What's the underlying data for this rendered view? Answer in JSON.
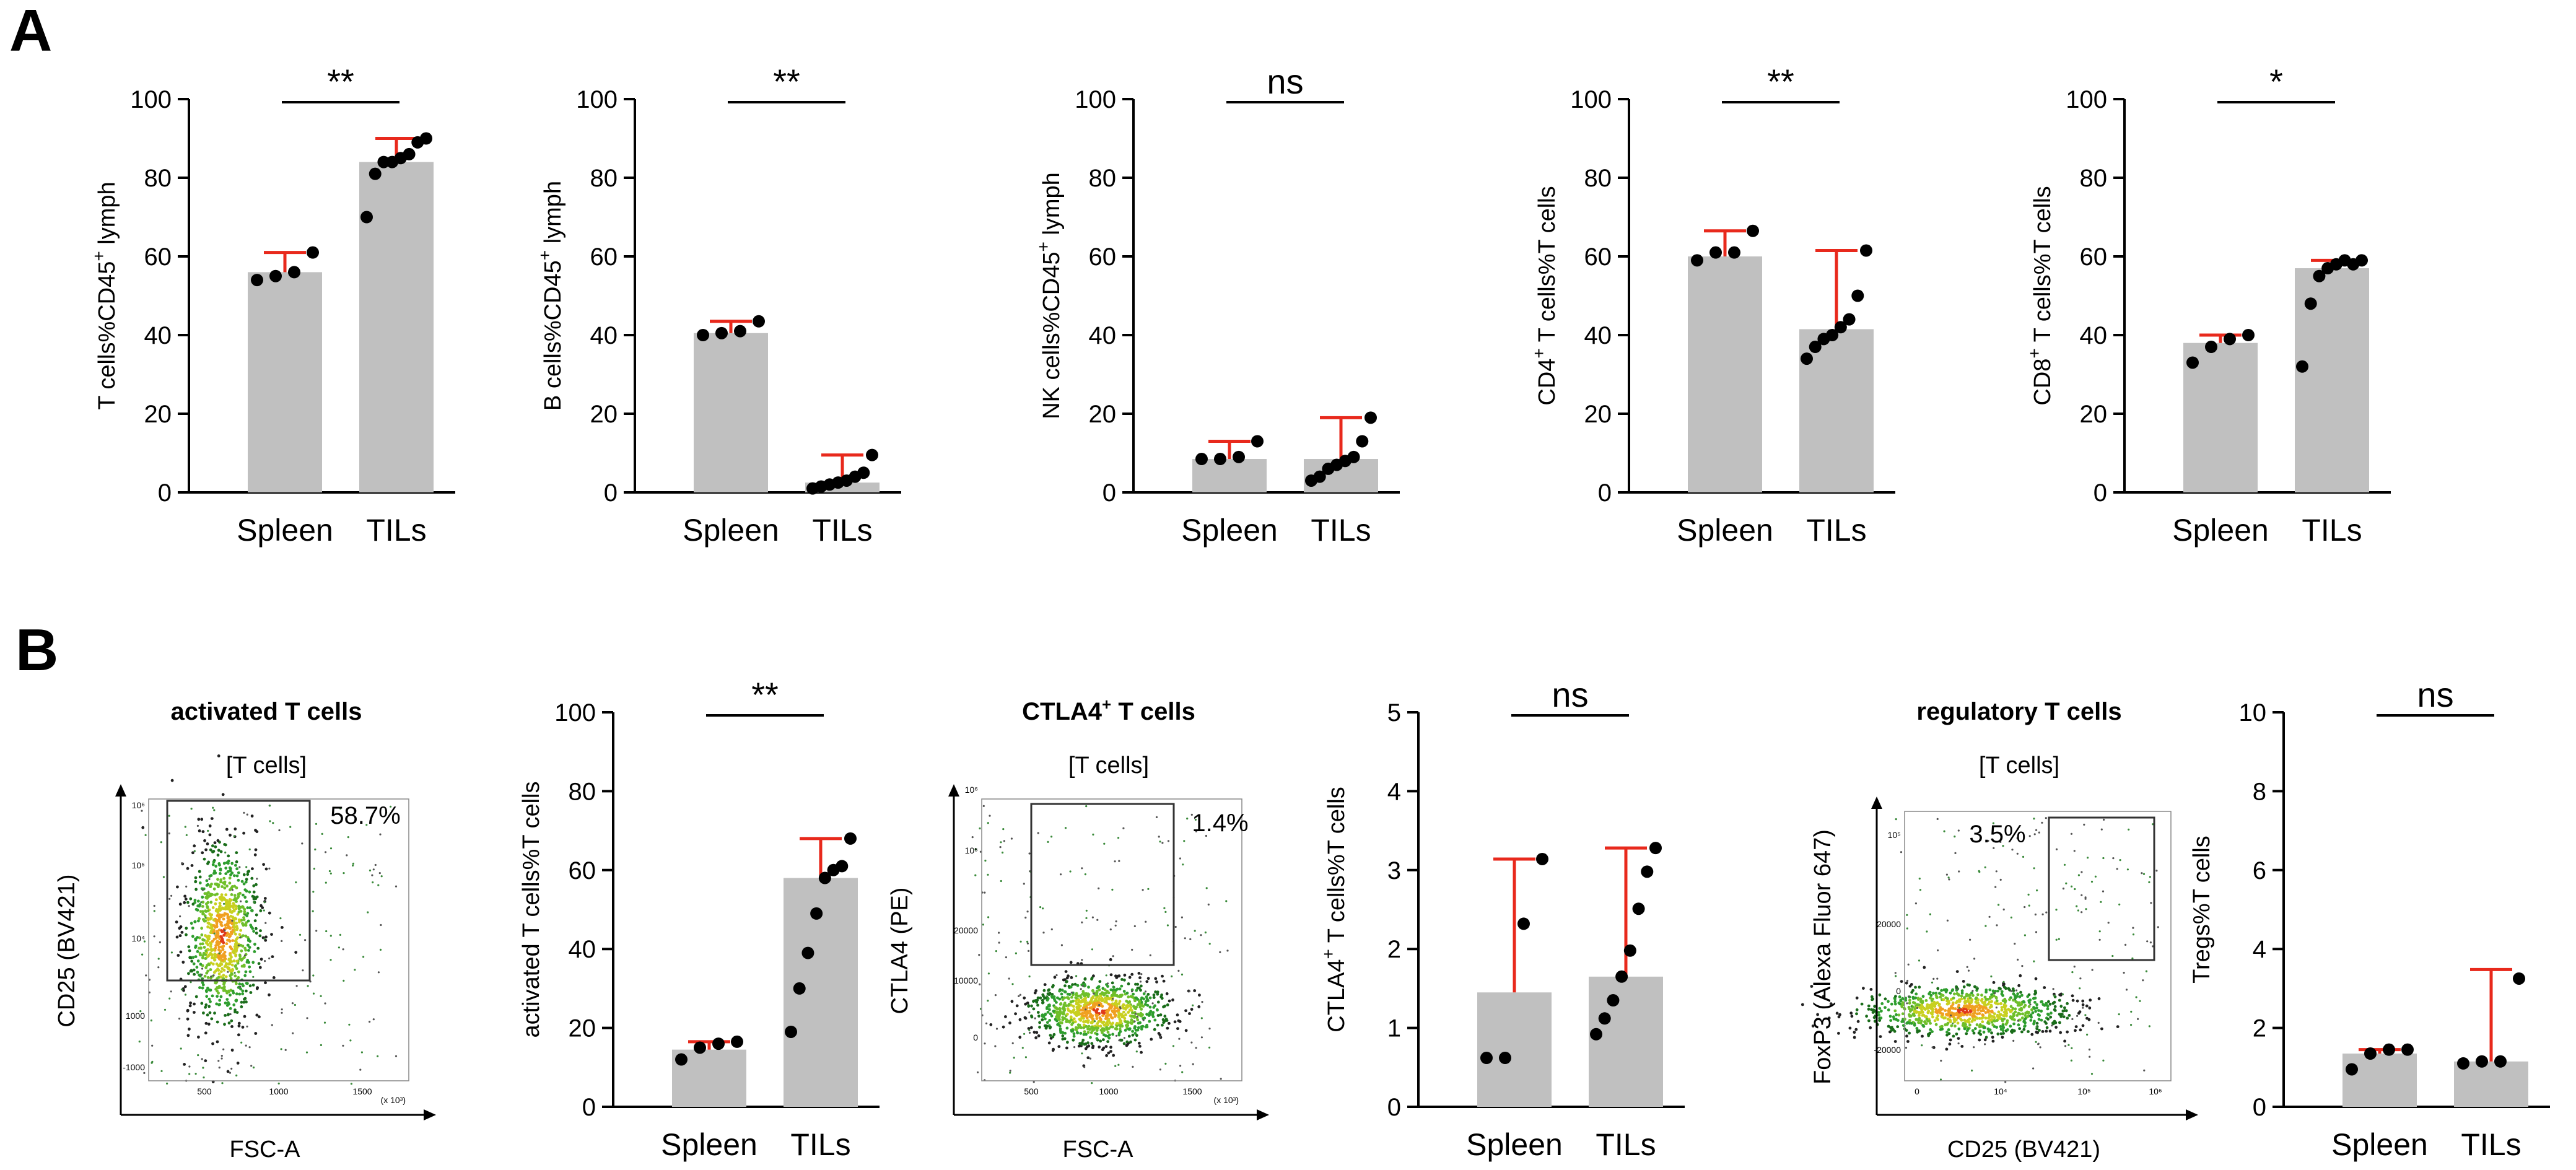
{
  "panel_labels": {
    "A": "A",
    "B": "B"
  },
  "colors": {
    "bar": "#c0c0c0",
    "errorbar": "#e8291c",
    "dot": "#000000",
    "axis": "#000000"
  },
  "chart_data": [
    {
      "id": "a1",
      "type": "bar",
      "categories": [
        "Spleen",
        "TILs"
      ],
      "values": [
        56,
        84
      ],
      "error_top": [
        61,
        90
      ],
      "points": [
        [
          54,
          55,
          56,
          61
        ],
        [
          70,
          81,
          84,
          84,
          85,
          86,
          89,
          90
        ]
      ],
      "ylabel": "T cells%CD45",
      "ylabel_sup": "+",
      "ylabel_tail": " lymph",
      "ylim": [
        0,
        100
      ],
      "yticks": [
        "0",
        "20",
        "40",
        "60",
        "80",
        "100"
      ],
      "sig": "**"
    },
    {
      "id": "a2",
      "type": "bar",
      "categories": [
        "Spleen",
        "TILs"
      ],
      "values": [
        40.5,
        2.5
      ],
      "error_top": [
        43.5,
        9.5
      ],
      "points": [
        [
          40,
          40.5,
          41,
          43.5
        ],
        [
          1,
          1.5,
          2,
          2.5,
          3,
          4,
          5,
          9.5
        ]
      ],
      "ylabel": "B cells%CD45",
      "ylabel_sup": "+",
      "ylabel_tail": " lymph",
      "ylim": [
        0,
        100
      ],
      "yticks": [
        "0",
        "20",
        "40",
        "60",
        "80",
        "100"
      ],
      "sig": "**"
    },
    {
      "id": "a3",
      "type": "bar",
      "categories": [
        "Spleen",
        "TILs"
      ],
      "values": [
        8.5,
        8.5
      ],
      "error_top": [
        13,
        19
      ],
      "points": [
        [
          8.5,
          8.5,
          9,
          13
        ],
        [
          3,
          4,
          6,
          7,
          8,
          9,
          13,
          19
        ]
      ],
      "ylabel": "NK cells%CD45",
      "ylabel_sup": "+",
      "ylabel_tail": " lymph",
      "ylim": [
        0,
        100
      ],
      "yticks": [
        "0",
        "20",
        "40",
        "60",
        "80",
        "100"
      ],
      "sig": "ns"
    },
    {
      "id": "a4",
      "type": "bar",
      "categories": [
        "Spleen",
        "TILs"
      ],
      "values": [
        60,
        41.5
      ],
      "error_top": [
        66.5,
        61.5
      ],
      "points": [
        [
          59,
          61,
          61,
          66.5
        ],
        [
          34,
          37,
          39,
          40,
          42,
          44,
          50,
          61.5
        ]
      ],
      "ylabel": "CD4",
      "ylabel_pre_sup": "+",
      "ylabel_tail": " T cells%T cells",
      "ylim": [
        0,
        100
      ],
      "yticks": [
        "0",
        "20",
        "40",
        "60",
        "80",
        "100"
      ],
      "sig": "**"
    },
    {
      "id": "a5",
      "type": "bar",
      "categories": [
        "Spleen",
        "TILs"
      ],
      "values": [
        38,
        57
      ],
      "error_top": [
        40,
        59
      ],
      "points": [
        [
          33,
          37,
          39,
          40
        ],
        [
          32,
          48,
          55,
          57,
          58,
          59,
          58,
          59
        ]
      ],
      "ylabel": "CD8",
      "ylabel_pre_sup": "+",
      "ylabel_tail": " T cells%T cells",
      "ylim": [
        0,
        100
      ],
      "yticks": [
        "0",
        "20",
        "40",
        "60",
        "80",
        "100"
      ],
      "sig": "*"
    },
    {
      "id": "b1",
      "type": "bar",
      "categories": [
        "Spleen",
        "TILs"
      ],
      "values": [
        14.5,
        58
      ],
      "error_top": [
        16.5,
        68
      ],
      "points": [
        [
          12,
          15,
          16,
          16.5
        ],
        [
          19,
          30,
          39,
          49,
          58,
          60,
          61,
          68
        ]
      ],
      "ylabel": "activated T cells%T cells",
      "ylim": [
        0,
        100
      ],
      "yticks": [
        "0",
        "20",
        "40",
        "60",
        "80",
        "100"
      ],
      "sig": "**"
    },
    {
      "id": "b2",
      "type": "bar",
      "categories": [
        "Spleen",
        "TILs"
      ],
      "values": [
        1.45,
        1.65
      ],
      "error_top": [
        3.14,
        3.28
      ],
      "points": [
        [
          0.62,
          0.62,
          2.32,
          3.14
        ],
        [
          0.92,
          1.12,
          1.35,
          1.65,
          1.98,
          2.51,
          2.98,
          3.28
        ]
      ],
      "ylabel": "CTLA4",
      "ylabel_pre_sup": "+",
      "ylabel_tail": " T cells%T cells",
      "ylim": [
        0,
        5
      ],
      "yticks": [
        "0",
        "1",
        "2",
        "3",
        "4",
        "5"
      ],
      "sig": "ns"
    },
    {
      "id": "b3",
      "type": "bar",
      "categories": [
        "Spleen",
        "TILs"
      ],
      "values": [
        1.35,
        1.15
      ],
      "error_top": [
        1.45,
        3.48
      ],
      "points": [
        [
          0.95,
          1.35,
          1.45,
          1.45
        ],
        [
          1.1,
          1.15,
          1.15,
          3.25
        ]
      ],
      "ylabel": "Tregs%T cells",
      "ylim": [
        0,
        10
      ],
      "yticks": [
        "0",
        "2",
        "4",
        "6",
        "8",
        "10"
      ],
      "sig": "ns"
    }
  ],
  "flow_plots": [
    {
      "id": "f1",
      "title": "activated T cells",
      "title_sup": "",
      "gate": "[T cells]",
      "pct": "58.7%",
      "xlabel": "FSC-A",
      "ylabel": "CD25 (BV421)",
      "xticks": [
        "500",
        "1000",
        "1500"
      ],
      "xunit": "(x 10³)",
      "yticks": [
        "-1000",
        "1000",
        "10⁴",
        "10⁵",
        "10⁶"
      ]
    },
    {
      "id": "f2",
      "title": "CTLA4",
      "title_sup": "+",
      "title_tail": " T cells",
      "gate": "[T cells]",
      "pct": "1.4%",
      "xlabel": "FSC-A",
      "ylabel": "CTLA4 (PE)",
      "xticks": [
        "500",
        "1000",
        "1500"
      ],
      "xunit": "(x 10³)",
      "yticks": [
        "0",
        "10000",
        "20000",
        "10⁵",
        "10⁶"
      ]
    },
    {
      "id": "f3",
      "title": "regulatory T cells",
      "title_sup": "",
      "gate": "[T cells]",
      "pct": "3.5%",
      "xlabel": "CD25 (BV421)",
      "ylabel": "FoxP3 (Alexa Fluor 647)",
      "xticks": [
        "0",
        "10⁴",
        "10⁵",
        "10⁶"
      ],
      "xunit": "",
      "yticks": [
        "-20000",
        "0",
        "20000",
        "10⁵"
      ]
    }
  ]
}
